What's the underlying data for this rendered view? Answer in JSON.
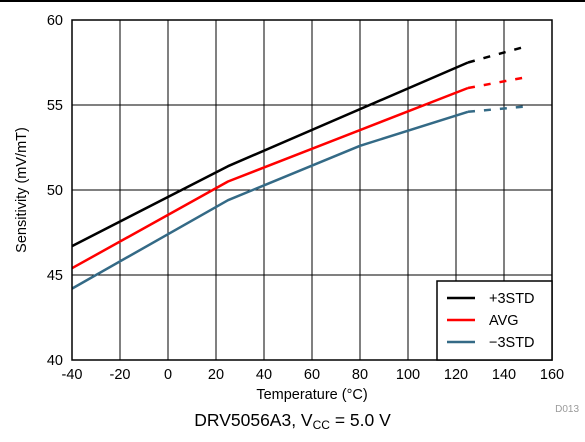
{
  "chart_data": {
    "type": "line",
    "xlabel": "Temperature (°C)",
    "ylabel": "Sensitivity (mV/mT)",
    "xlim": [
      -40,
      160
    ],
    "ylim": [
      40,
      60
    ],
    "xticks": [
      "-40",
      "-20",
      "0",
      "20",
      "40",
      "60",
      "80",
      "100",
      "120",
      "140",
      "160"
    ],
    "yticks": [
      "40",
      "45",
      "50",
      "55",
      "60"
    ],
    "grid": true,
    "legend_position": "bottom-right",
    "series": [
      {
        "name": "+3STD",
        "color": "#000000",
        "x": [
          -40,
          25,
          125
        ],
        "y": [
          46.7,
          51.4,
          57.5
        ],
        "extrapolated": {
          "x": [
            125,
            148
          ],
          "y": [
            57.5,
            58.4
          ]
        }
      },
      {
        "name": "AVG",
        "color": "#ff0000",
        "x": [
          -40,
          25,
          125
        ],
        "y": [
          45.4,
          50.5,
          56.0
        ],
        "extrapolated": {
          "x": [
            125,
            148
          ],
          "y": [
            56.0,
            56.6
          ]
        }
      },
      {
        "name": "−3STD",
        "color": "#346a86",
        "x": [
          -40,
          25,
          80,
          125
        ],
        "y": [
          44.2,
          49.4,
          52.6,
          54.6
        ],
        "extrapolated": {
          "x": [
            125,
            148
          ],
          "y": [
            54.6,
            54.9
          ]
        }
      }
    ]
  },
  "figure_id": "D013",
  "caption": {
    "prefix": "DRV5056A3, V",
    "subscript": "CC",
    "suffix": " = 5.0 V"
  }
}
